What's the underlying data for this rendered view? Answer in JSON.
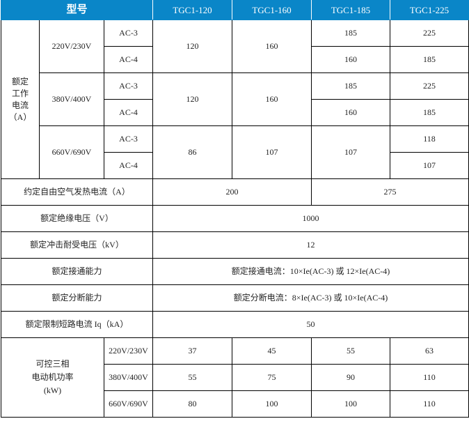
{
  "header": {
    "model_label": "型号",
    "models": [
      "TGC1-120",
      "TGC1-160",
      "TGC1-185",
      "TGC1-225"
    ]
  },
  "rated_current": {
    "label": "额定\n工作\n电流\n（A）",
    "groups": [
      {
        "voltage": "220V/230V",
        "ac3": "AC-3",
        "ac4": "AC-4",
        "v120": "120",
        "v160": "160",
        "v185_ac3": "185",
        "v185_ac4": "160",
        "v225_ac3": "225",
        "v225_ac4": "185"
      },
      {
        "voltage": "380V/400V",
        "ac3": "AC-3",
        "ac4": "AC-4",
        "v120": "120",
        "v160": "160",
        "v185_ac3": "185",
        "v185_ac4": "160",
        "v225_ac3": "225",
        "v225_ac4": "185"
      },
      {
        "voltage": "660V/690V",
        "ac3": "AC-3",
        "ac4": "AC-4",
        "v120": "86",
        "v160": "107",
        "v185": "107",
        "v225_ac3": "118",
        "v225_ac4": "107"
      }
    ]
  },
  "thermal": {
    "label": "约定自由空气发热电流（A）",
    "v1": "200",
    "v2": "275"
  },
  "rows": [
    {
      "label": "额定绝缘电压（V）",
      "value": "1000"
    },
    {
      "label": "额定冲击耐受电压（kV）",
      "value": "12"
    },
    {
      "label": "额定接通能力",
      "value": "额定接通电流：10×Ie(AC-3) 或 12×Ie(AC-4)"
    },
    {
      "label": "额定分断能力",
      "value": "额定分断电流：8×Ie(AC-3) 或 10×Ie(AC-4)"
    },
    {
      "label": "额定限制短路电流 Iq（kA）",
      "value": "50"
    }
  ],
  "motor": {
    "label": "可控三相\n电动机功率\n(kW)",
    "rows": [
      {
        "voltage": "220V/230V",
        "values": [
          "37",
          "45",
          "55",
          "63"
        ]
      },
      {
        "voltage": "380V/400V",
        "values": [
          "55",
          "75",
          "90",
          "110"
        ]
      },
      {
        "voltage": "660V/690V",
        "values": [
          "80",
          "100",
          "100",
          "110"
        ]
      }
    ]
  }
}
